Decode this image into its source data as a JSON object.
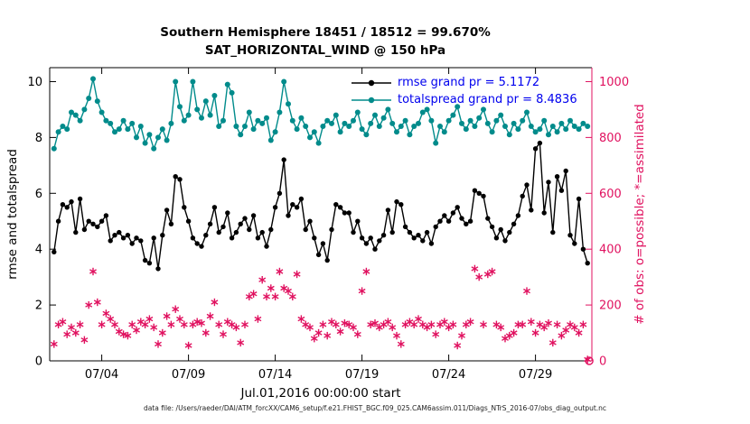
{
  "footer": "data file: /Users/raeder/DAI/ATM_forcXX/CAM6_setup/f.e21.FHIST_BGC.f09_025.CAM6assim.011/Diags_NTrS_2016-07/obs_diag_output.nc",
  "colors": {
    "rmse": "#000000",
    "totalspread": "#008b8b",
    "obs": "#e0115f",
    "legend_text": "#0000ee",
    "axis": "#000000"
  },
  "chart_data": {
    "type": "line",
    "title": "Southern Hemisphere 18451 / 18512 = 99.670%",
    "subtitle": "SAT_HORIZONTAL_WIND @ 150 hPa",
    "xlabel": "Jul.01,2016 00:00:00 start",
    "ylabel_left": "rmse and totalspread",
    "ylabel_right": "# of obs: o=possible; *=assimilated",
    "x_domain_days": [
      0,
      31.25
    ],
    "x_start_day": 0.25,
    "x_step_days": 0.25,
    "x_ticks": [
      {
        "day": 3,
        "label": "07/04"
      },
      {
        "day": 8,
        "label": "07/09"
      },
      {
        "day": 13,
        "label": "07/14"
      },
      {
        "day": 18,
        "label": "07/19"
      },
      {
        "day": 23,
        "label": "07/24"
      },
      {
        "day": 28,
        "label": "07/29"
      }
    ],
    "ylim_left": [
      0,
      10.5
    ],
    "left_ticks": [
      0,
      2,
      4,
      6,
      8,
      10
    ],
    "ylim_right": [
      0,
      1050
    ],
    "right_ticks": [
      0,
      200,
      400,
      600,
      800,
      1000
    ],
    "legend": [
      {
        "series": "rmse",
        "label": "rmse grand pr = 5.1172"
      },
      {
        "series": "totalspread",
        "label": "totalspread grand pr = 8.4836"
      }
    ],
    "series": [
      {
        "name": "rmse",
        "axis": "left",
        "style": "line-dot",
        "grand_mean": 5.1172,
        "values": [
          3.9,
          5.0,
          5.6,
          5.5,
          5.7,
          4.6,
          5.8,
          4.7,
          5.0,
          4.9,
          4.8,
          5.0,
          5.2,
          4.3,
          4.5,
          4.6,
          4.4,
          4.5,
          4.2,
          4.4,
          4.3,
          3.6,
          3.5,
          4.4,
          3.3,
          4.5,
          5.4,
          4.9,
          6.6,
          6.5,
          5.5,
          5.0,
          4.4,
          4.2,
          4.1,
          4.5,
          4.9,
          5.5,
          4.6,
          4.8,
          5.3,
          4.4,
          4.6,
          4.9,
          5.1,
          4.7,
          5.2,
          4.4,
          4.6,
          4.1,
          4.7,
          5.5,
          6.0,
          7.2,
          5.2,
          5.6,
          5.5,
          5.8,
          4.7,
          5.0,
          4.4,
          3.8,
          4.2,
          3.6,
          4.7,
          5.6,
          5.5,
          5.3,
          5.3,
          4.6,
          5.0,
          4.4,
          4.2,
          4.4,
          4.0,
          4.3,
          4.5,
          5.4,
          4.6,
          5.7,
          5.6,
          4.8,
          4.6,
          4.4,
          4.5,
          4.3,
          4.6,
          4.2,
          4.8,
          5.0,
          5.2,
          5.0,
          5.3,
          5.5,
          5.1,
          4.9,
          5.0,
          6.1,
          6.0,
          5.9,
          5.1,
          4.8,
          4.4,
          4.7,
          4.3,
          4.6,
          4.9,
          5.2,
          5.9,
          6.3,
          5.4,
          7.6,
          7.8,
          5.3,
          6.4,
          4.6,
          6.6,
          6.1,
          6.8,
          4.5,
          4.2,
          5.8,
          4.0,
          3.5
        ]
      },
      {
        "name": "totalspread",
        "axis": "left",
        "style": "line-dot",
        "grand_mean": 8.4836,
        "values": [
          7.6,
          8.2,
          8.4,
          8.3,
          8.9,
          8.8,
          8.6,
          9.0,
          9.4,
          10.1,
          9.3,
          8.9,
          8.6,
          8.5,
          8.2,
          8.3,
          8.6,
          8.3,
          8.5,
          8.0,
          8.4,
          7.8,
          8.1,
          7.6,
          8.0,
          8.3,
          7.9,
          8.5,
          10.0,
          9.1,
          8.6,
          8.8,
          10.0,
          9.0,
          8.7,
          9.3,
          8.8,
          9.5,
          8.4,
          8.6,
          9.9,
          9.6,
          8.4,
          8.1,
          8.4,
          8.9,
          8.3,
          8.6,
          8.5,
          8.7,
          7.9,
          8.2,
          8.9,
          10.0,
          9.2,
          8.6,
          8.3,
          8.7,
          8.4,
          8.0,
          8.2,
          7.8,
          8.4,
          8.6,
          8.5,
          8.8,
          8.2,
          8.5,
          8.4,
          8.6,
          8.9,
          8.3,
          8.1,
          8.5,
          8.8,
          8.4,
          8.7,
          9.0,
          8.5,
          8.2,
          8.4,
          8.6,
          8.1,
          8.4,
          8.5,
          8.9,
          9.0,
          8.6,
          7.8,
          8.4,
          8.2,
          8.6,
          8.8,
          9.1,
          8.5,
          8.3,
          8.6,
          8.4,
          8.7,
          9.0,
          8.5,
          8.2,
          8.6,
          8.8,
          8.4,
          8.1,
          8.5,
          8.3,
          8.6,
          8.9,
          8.4,
          8.2,
          8.3,
          8.6,
          8.1,
          8.4,
          8.2,
          8.5,
          8.3,
          8.6,
          8.4,
          8.3,
          8.5,
          8.4
        ]
      },
      {
        "name": "observations_assimilated",
        "axis": "right",
        "style": "asterisk",
        "values": [
          60,
          130,
          140,
          95,
          120,
          100,
          130,
          75,
          200,
          320,
          210,
          130,
          170,
          150,
          130,
          105,
          95,
          90,
          130,
          110,
          140,
          130,
          150,
          120,
          60,
          100,
          160,
          130,
          185,
          150,
          130,
          55,
          130,
          140,
          135,
          100,
          160,
          210,
          130,
          95,
          140,
          130,
          120,
          65,
          130,
          230,
          240,
          150,
          290,
          230,
          260,
          230,
          320,
          260,
          250,
          230,
          310,
          150,
          130,
          120,
          80,
          100,
          130,
          90,
          140,
          130,
          105,
          135,
          130,
          120,
          95,
          250,
          320,
          130,
          135,
          120,
          130,
          140,
          120,
          90,
          60,
          130,
          140,
          130,
          150,
          130,
          120,
          130,
          95,
          130,
          140,
          120,
          130,
          55,
          90,
          130,
          140,
          330,
          300,
          130,
          310,
          320,
          130,
          120,
          80,
          90,
          100,
          130,
          130,
          250,
          140,
          100,
          130,
          120,
          135,
          65,
          130,
          90,
          110,
          130,
          120,
          100,
          130,
          5
        ]
      }
    ],
    "possible_obs_marker": {
      "day": 31.1,
      "value": 0
    }
  }
}
